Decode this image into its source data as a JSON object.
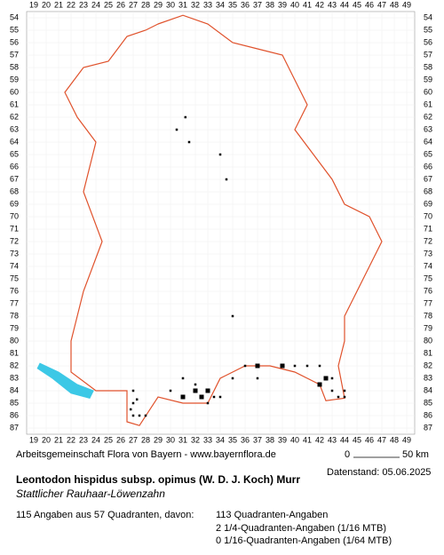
{
  "grid": {
    "columns": [
      "19",
      "20",
      "21",
      "22",
      "23",
      "24",
      "25",
      "26",
      "27",
      "28",
      "29",
      "30",
      "31",
      "32",
      "33",
      "34",
      "35",
      "36",
      "37",
      "38",
      "39",
      "40",
      "41",
      "42",
      "43",
      "44",
      "45",
      "46",
      "47",
      "48",
      "49"
    ],
    "rows": [
      "54",
      "55",
      "56",
      "57",
      "58",
      "59",
      "60",
      "61",
      "62",
      "63",
      "64",
      "65",
      "66",
      "67",
      "68",
      "69",
      "70",
      "71",
      "72",
      "73",
      "74",
      "75",
      "76",
      "77",
      "78",
      "79",
      "80",
      "81",
      "82",
      "83",
      "84",
      "85",
      "86",
      "87"
    ]
  },
  "footer": {
    "credit": "Arbeitsgemeinschaft Flora von Bayern - www.bayernflora.de",
    "scale_start": "0",
    "scale_end": "50 km",
    "date": "Datenstand: 05.06.2025",
    "title": "Leontodon hispidus subsp. opimus (W. D. J. Koch) Murr",
    "subtitle": "Stattlicher Rauhaar-Löwenzahn",
    "summary": "115 Angaben aus 57 Quadranten, davon:",
    "counts": [
      "113 Quadranten-Angaben",
      "2 1/4-Quadranten-Angaben (1/16 MTB)",
      "0 1/16-Quadranten-Angaben (1/64 MTB)"
    ]
  }
}
